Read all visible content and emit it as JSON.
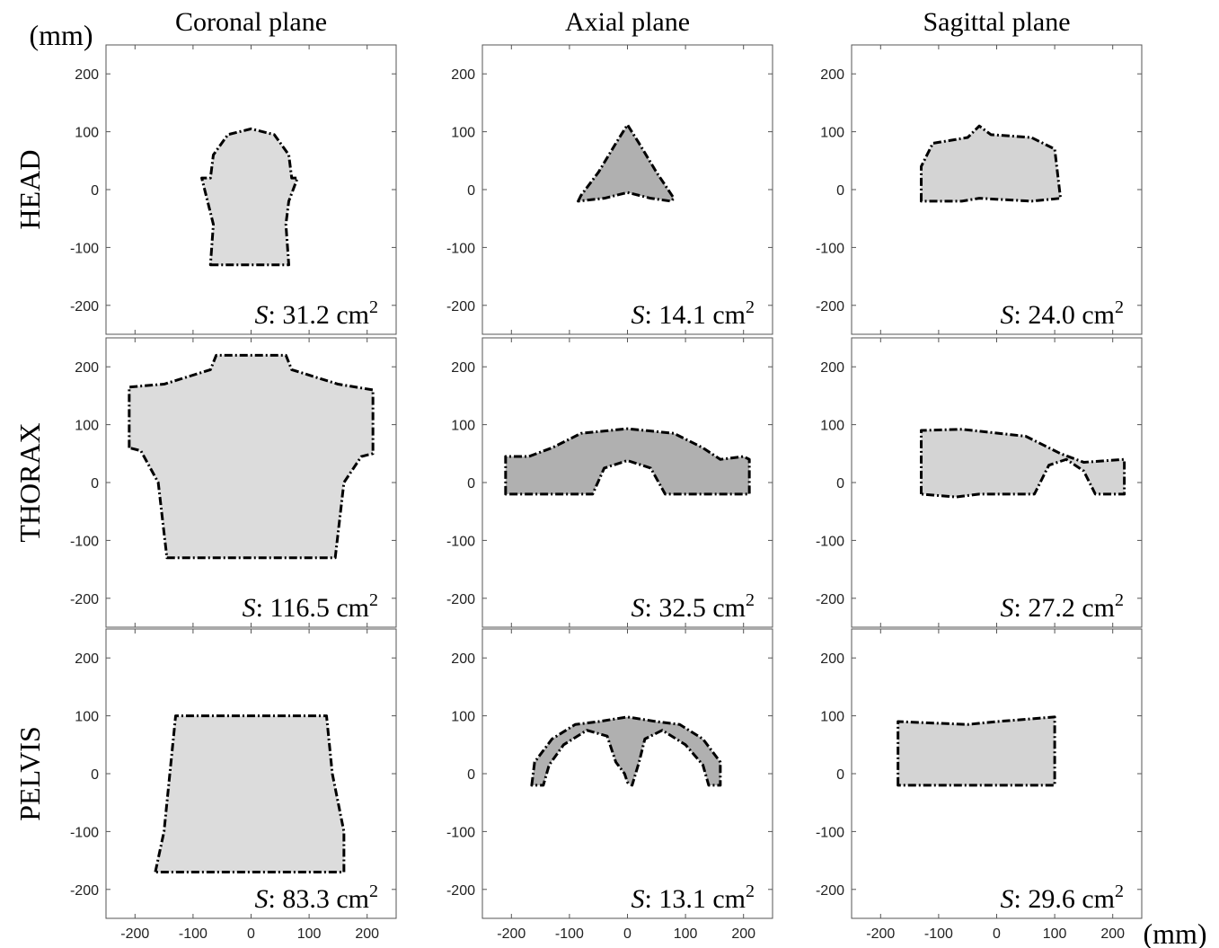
{
  "unit_label_y": "(mm)",
  "unit_label_x": "(mm)",
  "columns": [
    "Coronal plane",
    "Axial plane",
    "Sagittal plane"
  ],
  "rows": [
    "HEAD",
    "THORAX",
    "PELVIS"
  ],
  "axes": {
    "xlim": [
      -250,
      250
    ],
    "ylim": [
      -250,
      250
    ],
    "xticks": [
      -200,
      -100,
      0,
      100,
      200
    ],
    "yticks": [
      -200,
      -100,
      0,
      100,
      200
    ]
  },
  "panels": [
    [
      {
        "symbol": "S",
        "text": ": 31.2 cm",
        "sup": "2"
      },
      {
        "symbol": "S",
        "text": ": 14.1 cm",
        "sup": "2"
      },
      {
        "symbol": "S",
        "text": ": 24.0 cm",
        "sup": "2"
      }
    ],
    [
      {
        "symbol": "S",
        "text": ": 116.5 cm",
        "sup": "2"
      },
      {
        "symbol": "S",
        "text": ": 32.5 cm",
        "sup": "2"
      },
      {
        "symbol": "S",
        "text": ": 27.2 cm",
        "sup": "2"
      }
    ],
    [
      {
        "symbol": "S",
        "text": ": 83.3 cm",
        "sup": "2"
      },
      {
        "symbol": "S",
        "text": ": 13.1 cm",
        "sup": "2"
      },
      {
        "symbol": "S",
        "text": ": 29.6 cm",
        "sup": "2"
      }
    ]
  ]
}
